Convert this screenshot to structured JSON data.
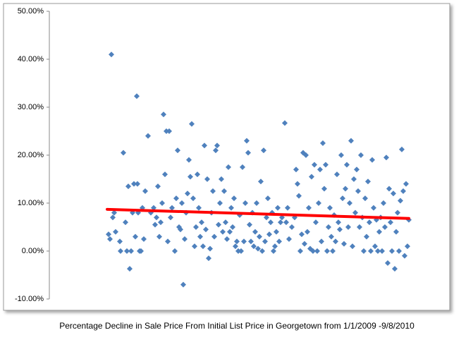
{
  "chart_data": {
    "type": "scatter",
    "title": "Percentage Decline in Sale Price From Initial List Price in Georgetown from 1/1/2009 -9/8/2010",
    "xlim": [
      70,
      630
    ],
    "ylim": [
      -10,
      50
    ],
    "yticks": [
      {
        "value": -10,
        "label": "-10.00%"
      },
      {
        "value": 0,
        "label": "0.00%"
      },
      {
        "value": 10,
        "label": "10.00%"
      },
      {
        "value": 20,
        "label": "20.00%"
      },
      {
        "value": 30,
        "label": "30.00%"
      },
      {
        "value": 40,
        "label": "40.00%"
      },
      {
        "value": 50,
        "label": "50.00%"
      }
    ],
    "series": [
      {
        "color": "#4f81bd",
        "x": [
          158,
          154,
          156,
          160,
          162,
          164,
          170,
          171,
          175,
          178,
          180,
          182,
          184,
          186,
          188,
          190,
          192,
          194,
          195,
          196,
          198,
          200,
          202,
          204,
          206,
          210,
          214,
          218,
          220,
          222,
          224,
          226,
          228,
          230,
          232,
          234,
          236,
          238,
          240,
          242,
          244,
          248,
          250,
          252,
          254,
          256,
          258,
          260,
          262,
          264,
          266,
          268,
          270,
          272,
          274,
          276,
          278,
          280,
          282,
          284,
          286,
          288,
          290,
          292,
          294,
          296,
          298,
          300,
          302,
          304,
          306,
          308,
          310,
          312,
          314,
          316,
          318,
          320,
          322,
          324,
          326,
          328,
          330,
          332,
          334,
          336,
          338,
          340,
          342,
          344,
          346,
          348,
          350,
          352,
          354,
          356,
          358,
          360,
          362,
          364,
          366,
          368,
          370,
          372,
          374,
          376,
          378,
          380,
          382,
          384,
          386,
          388,
          390,
          392,
          394,
          396,
          398,
          400,
          404,
          406,
          408,
          410,
          414,
          418,
          420,
          422,
          424,
          426,
          428,
          430,
          432,
          434,
          436,
          438,
          440,
          442,
          444,
          446,
          448,
          450,
          452,
          454,
          456,
          458,
          460,
          462,
          464,
          466,
          468,
          470,
          472,
          474,
          476,
          478,
          480,
          482,
          484,
          486,
          488,
          490,
          492,
          494,
          496,
          498,
          500,
          502,
          504,
          506,
          508,
          510,
          512,
          514,
          516,
          518,
          520,
          522,
          524,
          526,
          528,
          530,
          532,
          534,
          536,
          538,
          540,
          542,
          544,
          546,
          548,
          550,
          552,
          554,
          556,
          558,
          560,
          562,
          564,
          566,
          568,
          570,
          572,
          574,
          576,
          578,
          580
        ],
        "values": [
          41,
          3.5,
          2.5,
          7,
          8,
          4,
          2,
          0,
          20.5,
          6,
          0,
          13.5,
          -3.7,
          0,
          8,
          14,
          3,
          32.3,
          14,
          8,
          0,
          0,
          9,
          2.5,
          12.5,
          24,
          8,
          9,
          5.5,
          7,
          13.5,
          3,
          6,
          10,
          28.5,
          16,
          25,
          2,
          25,
          7,
          9,
          0,
          11,
          21,
          5,
          4.5,
          10,
          -7,
          2.5,
          8,
          12,
          19,
          15.5,
          26.5,
          11,
          1,
          5,
          16,
          9,
          3,
          6,
          1,
          22,
          4.5,
          15,
          -1.5,
          0.5,
          8,
          12.5,
          3,
          21,
          22,
          5.5,
          10,
          15,
          4,
          12.5,
          6,
          2.5,
          17.5,
          4,
          9,
          5,
          11,
          1,
          2,
          0,
          7.5,
          0,
          17.5,
          2,
          10,
          23,
          20.5,
          5.5,
          2,
          8,
          1,
          4,
          10,
          0.5,
          3,
          14.5,
          0,
          21,
          2,
          7,
          11,
          3.5,
          6,
          8,
          0,
          1,
          4,
          9,
          2,
          6,
          7,
          26.7,
          6,
          9,
          2.5,
          5,
          7,
          17,
          14,
          11.5,
          0,
          3.5,
          20.5,
          1.5,
          20,
          4,
          9,
          0.5,
          15.5,
          0,
          18,
          6,
          0,
          10,
          17,
          2,
          22.5,
          13,
          18,
          0,
          5,
          9,
          3,
          0,
          7.5,
          2,
          16,
          6,
          4.5,
          20,
          11,
          1.5,
          13,
          18,
          5,
          10,
          23,
          1,
          15,
          8,
          17,
          12.5,
          5,
          20,
          7,
          0,
          11,
          3,
          14.5,
          6,
          0,
          19,
          9,
          1,
          6.5,
          0,
          4,
          7,
          0,
          10,
          5,
          19.5,
          -2.5,
          13,
          6,
          0,
          12,
          -3.7,
          4,
          8,
          0,
          10.5,
          21.2,
          12.5,
          -1,
          14,
          1,
          6.5
        ]
      }
    ],
    "trendline": {
      "color": "#ff0000",
      "x": [
        152,
        580
      ],
      "values": [
        8.7,
        6.8
      ]
    }
  }
}
